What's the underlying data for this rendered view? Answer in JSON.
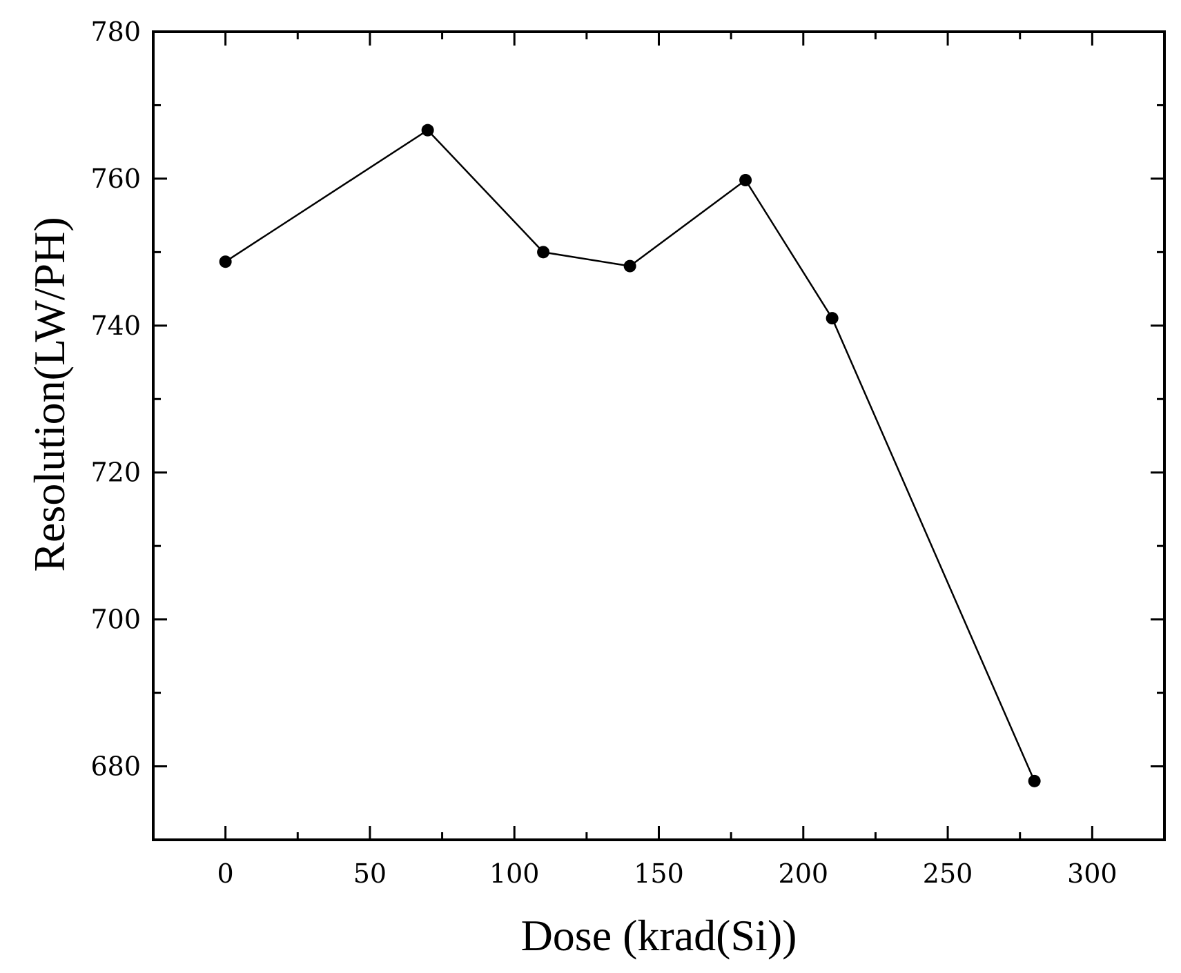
{
  "chart_data": {
    "type": "line",
    "title": "",
    "xlabel": "Dose (krad(Si))",
    "ylabel": "Resolution(LW/PH)",
    "xlim": [
      -25,
      325
    ],
    "ylim": [
      670,
      780
    ],
    "x_major_ticks": [
      0,
      50,
      100,
      150,
      200,
      250,
      300
    ],
    "x_minor_ticks": [
      25,
      75,
      125,
      175,
      225,
      275
    ],
    "y_major_ticks": [
      680,
      700,
      720,
      740,
      760,
      780
    ],
    "y_minor_ticks": [
      690,
      710,
      730,
      750,
      770
    ],
    "x_tick_labels": [
      "0",
      "50",
      "100",
      "150",
      "200",
      "250",
      "300"
    ],
    "y_tick_labels": [
      "680",
      "700",
      "720",
      "740",
      "760",
      "780"
    ],
    "grid": false,
    "legend": "none",
    "series": [
      {
        "x": [
          0,
          70,
          110,
          140,
          180,
          210,
          280
        ],
        "y": [
          748.7,
          766.6,
          750.0,
          748.1,
          759.8,
          741.0,
          678.0
        ],
        "color": "#000000",
        "marker": "circle"
      }
    ]
  }
}
